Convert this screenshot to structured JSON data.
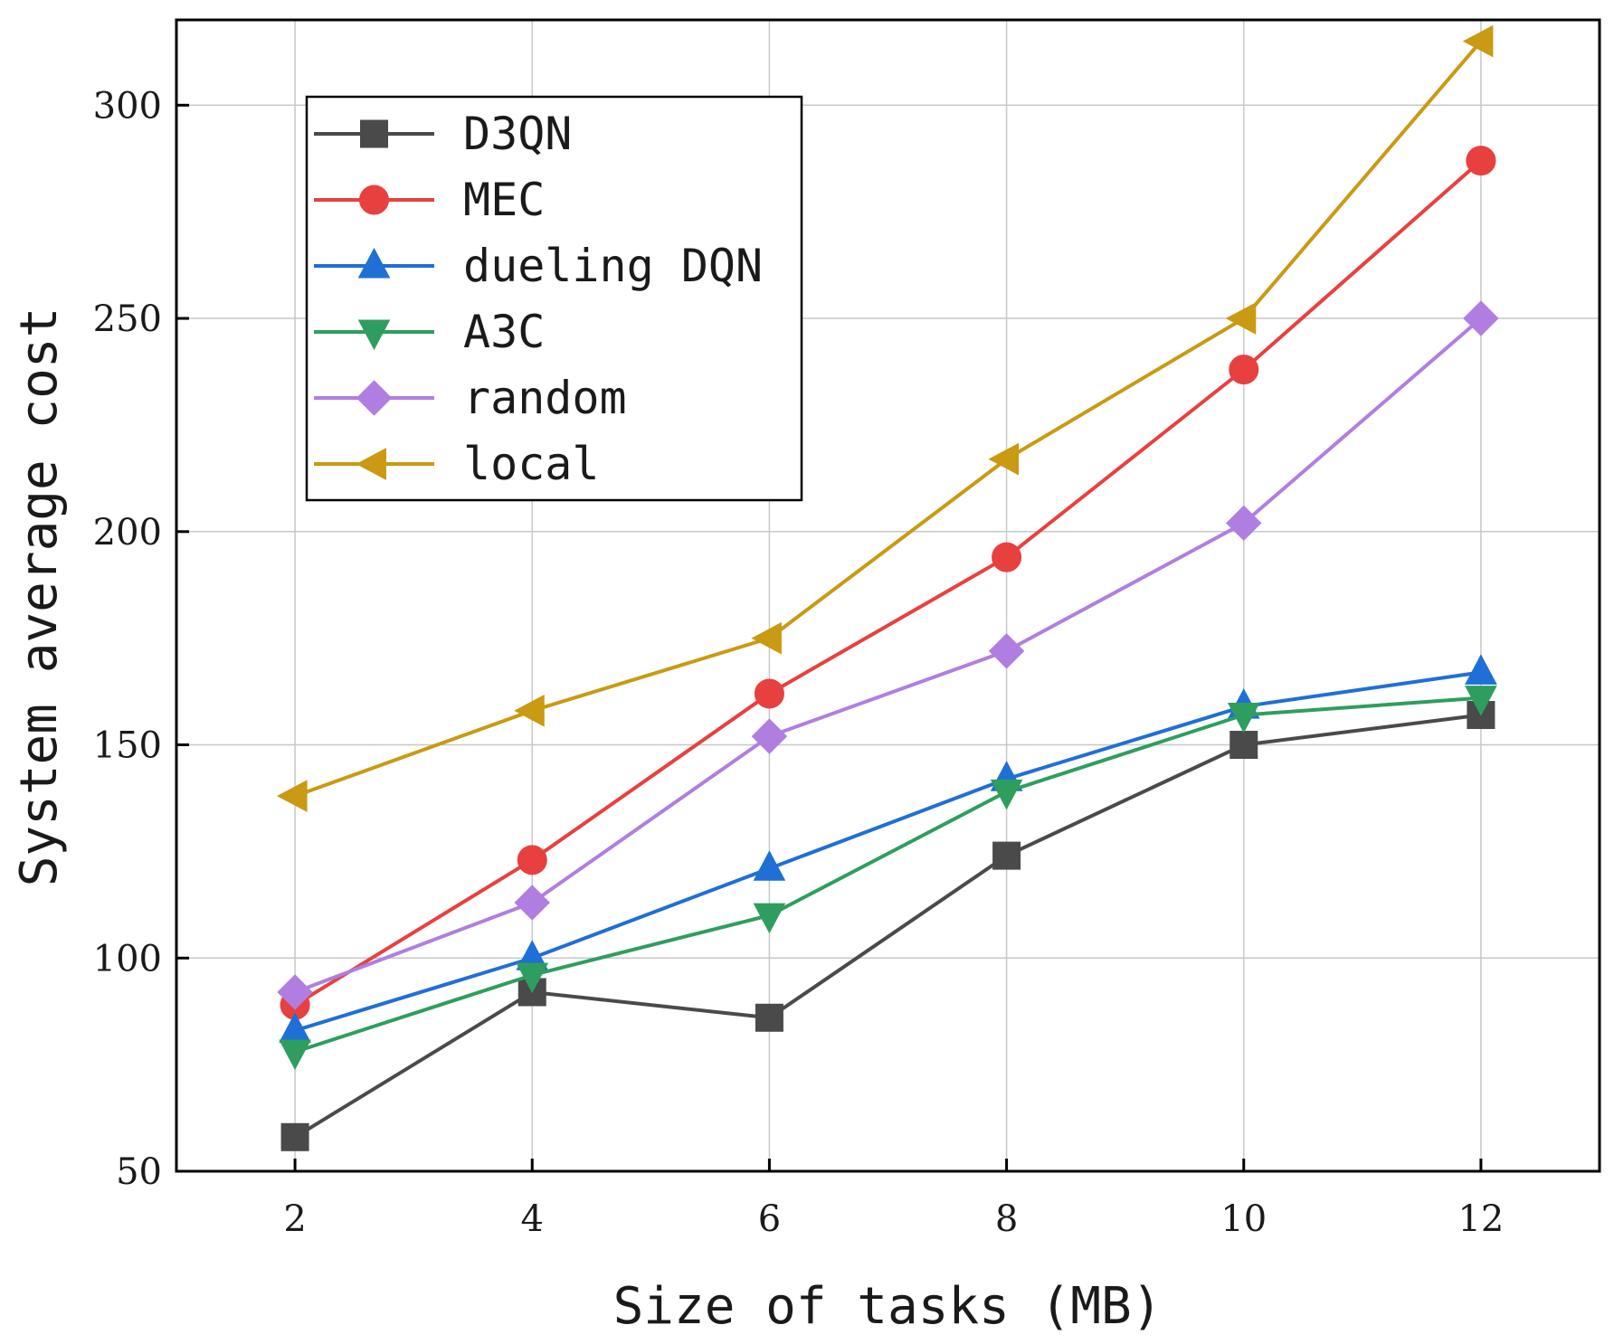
{
  "chart_data": {
    "type": "line",
    "title": "",
    "xlabel": "Size of tasks (MB)",
    "ylabel": "System average cost",
    "x": [
      2,
      4,
      6,
      8,
      10,
      12
    ],
    "xticks": [
      "2",
      "4",
      "6",
      "8",
      "10",
      "12"
    ],
    "yticks": [
      "50",
      "100",
      "150",
      "200",
      "250",
      "300"
    ],
    "xlim": [
      1,
      13
    ],
    "ylim": [
      50,
      320
    ],
    "grid": true,
    "legend_position": "top-left",
    "series": [
      {
        "name": "D3QN",
        "color": "#4a4a4a",
        "marker": "square",
        "values": [
          58,
          92,
          86,
          124,
          150,
          157
        ]
      },
      {
        "name": "MEC",
        "color": "#e8403f",
        "marker": "circle",
        "values": [
          89,
          123,
          162,
          194,
          238,
          287
        ]
      },
      {
        "name": "dueling DQN",
        "color": "#1f6fd6",
        "marker": "triangle-up",
        "values": [
          83,
          100,
          121,
          142,
          159,
          167
        ]
      },
      {
        "name": "A3C",
        "color": "#2e9e5e",
        "marker": "triangle-down",
        "values": [
          78,
          96,
          110,
          139,
          157,
          161
        ]
      },
      {
        "name": "random",
        "color": "#b07ee0",
        "marker": "diamond",
        "values": [
          92,
          113,
          152,
          172,
          202,
          250
        ]
      },
      {
        "name": "local",
        "color": "#c99a12",
        "marker": "triangle-left",
        "values": [
          138,
          158,
          175,
          217,
          250,
          315
        ]
      }
    ]
  }
}
